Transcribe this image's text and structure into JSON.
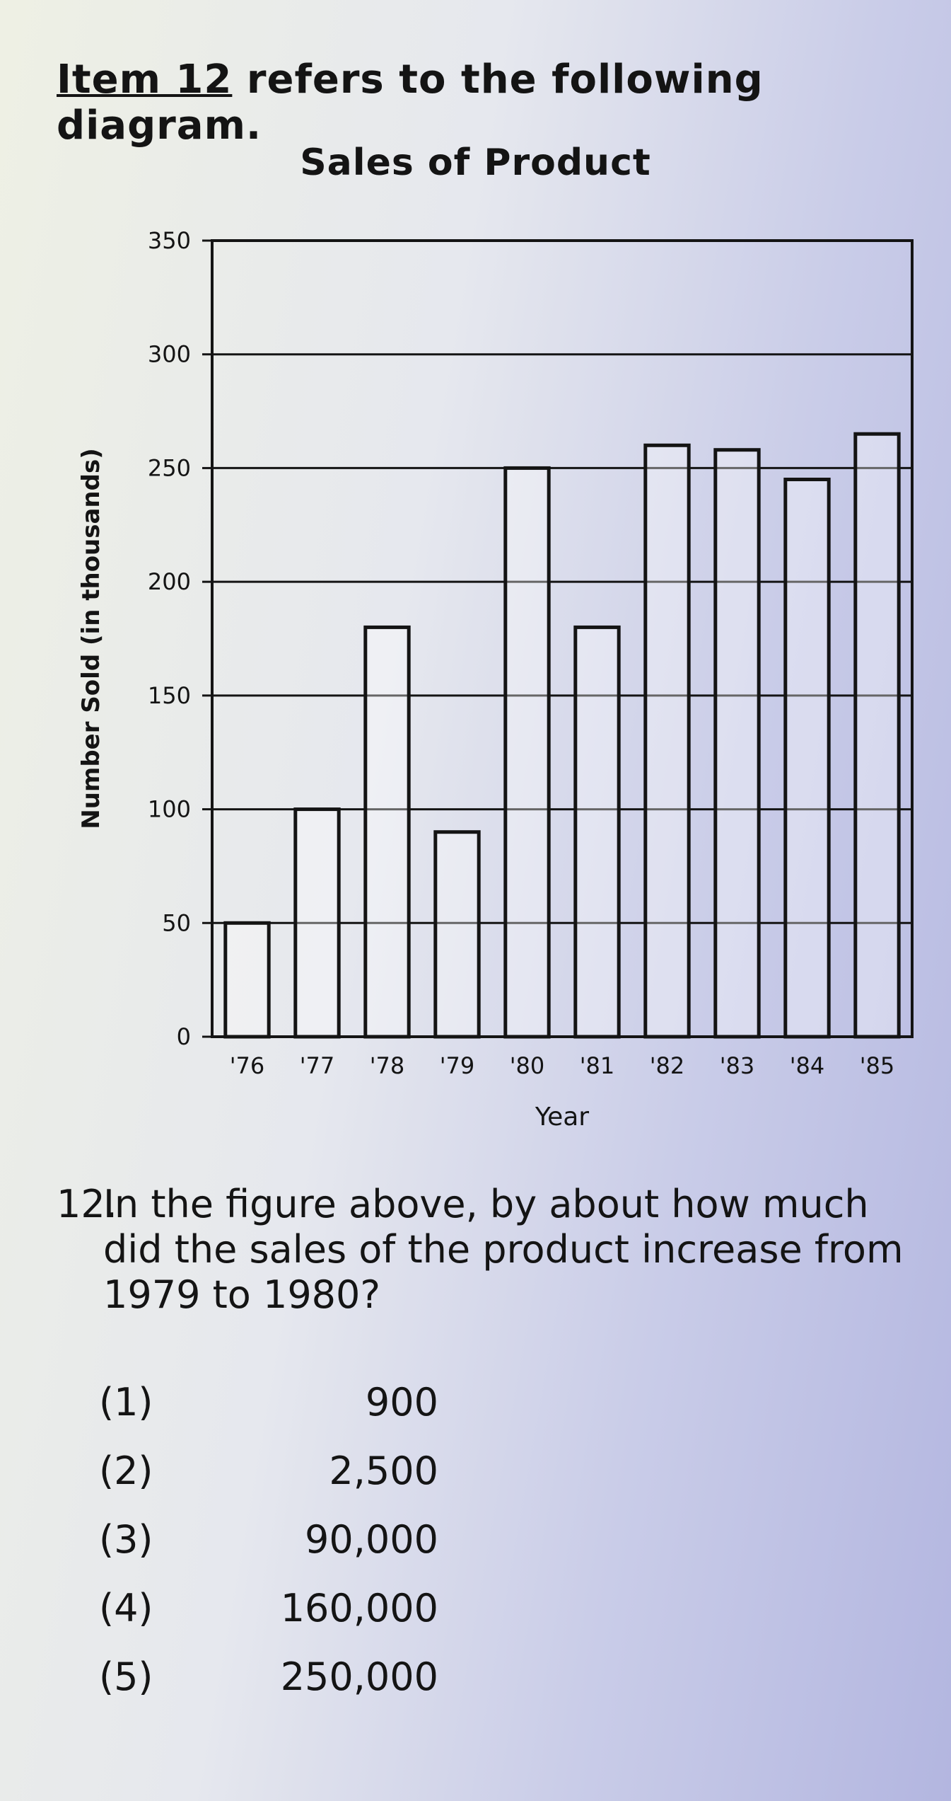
{
  "intro": {
    "item_ref": "Item 12",
    "rest": " refers to the following diagram."
  },
  "chart_data": {
    "type": "bar",
    "title": "Sales of Product",
    "xlabel": "Year",
    "ylabel": "Number Sold (in thousands)",
    "categories": [
      "'76",
      "'77",
      "'78",
      "'79",
      "'80",
      "'81",
      "'82",
      "'83",
      "'84",
      "'85"
    ],
    "values": [
      50,
      100,
      180,
      90,
      250,
      180,
      260,
      258,
      245,
      265
    ],
    "yticks": [
      0,
      50,
      100,
      150,
      200,
      250,
      300,
      350
    ],
    "ylim": [
      0,
      350
    ],
    "grid": true
  },
  "question": {
    "number": "12.",
    "text": "In the figure above, by about how much did the sales of the product increase from 1979 to 1980?"
  },
  "options": [
    {
      "num": "(1)",
      "value": "900"
    },
    {
      "num": "(2)",
      "value": "2,500"
    },
    {
      "num": "(3)",
      "value": "90,000"
    },
    {
      "num": "(4)",
      "value": "160,000"
    },
    {
      "num": "(5)",
      "value": "250,000"
    }
  ]
}
